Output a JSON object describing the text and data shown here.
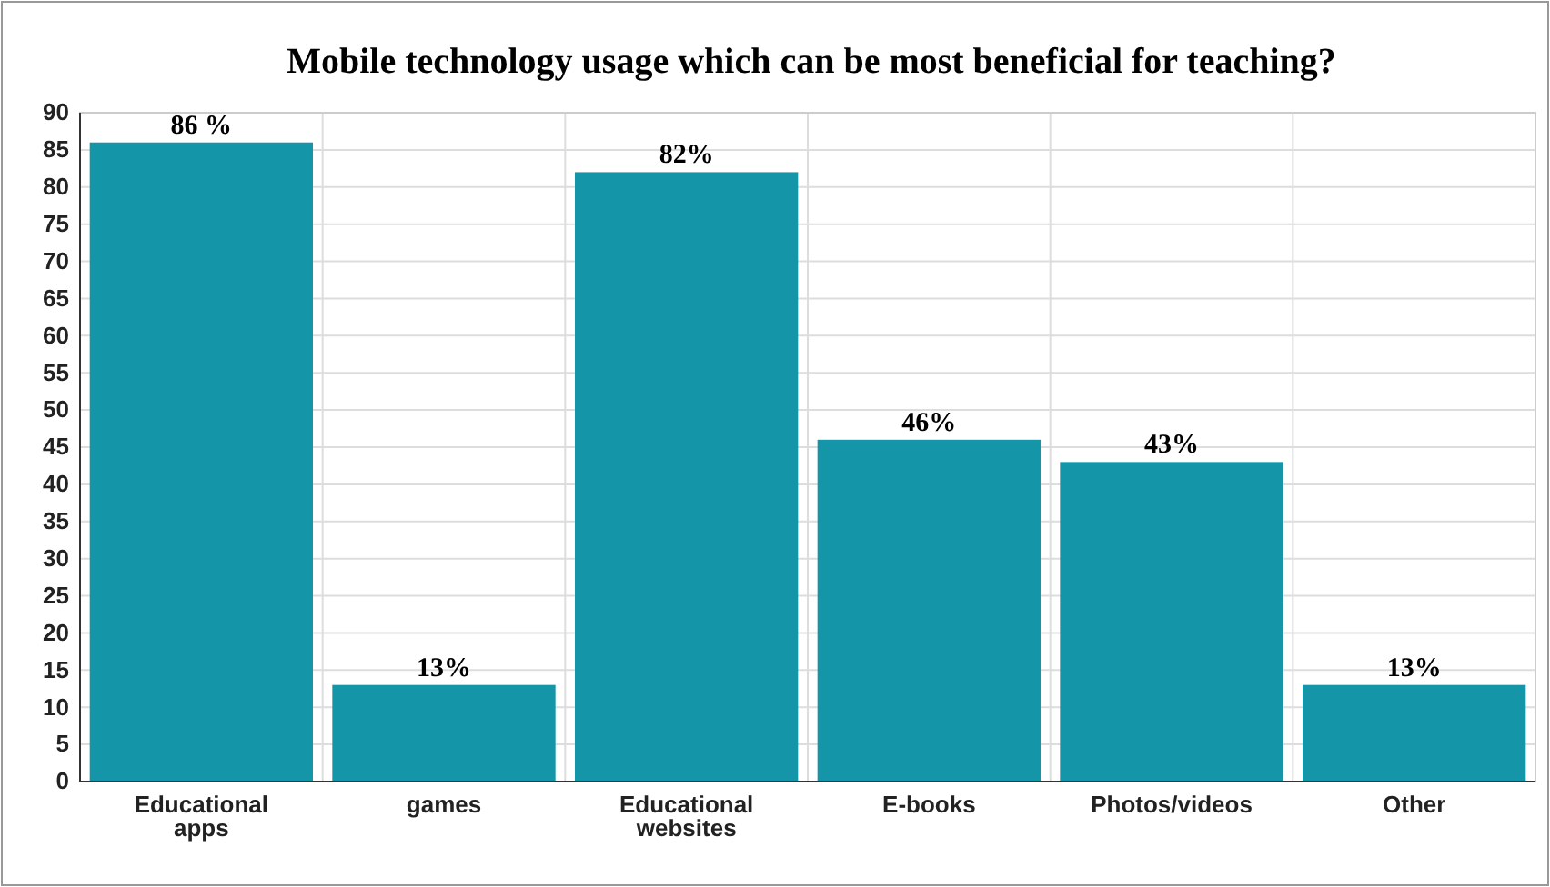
{
  "chart_data": {
    "type": "bar",
    "title": "Mobile technology usage which can be most beneficial for teaching?",
    "categories": [
      "Educational apps",
      "games",
      "Educational websites",
      "E-books",
      "Photos/videos",
      "Other"
    ],
    "values": [
      86,
      13,
      82,
      46,
      43,
      13
    ],
    "value_labels": [
      "86 %",
      "13%",
      "82%",
      "46%",
      "43%",
      "13%"
    ],
    "color": "#1496a8",
    "ylim": [
      0,
      90
    ],
    "yticks": [
      0,
      5,
      10,
      15,
      20,
      25,
      30,
      35,
      40,
      45,
      50,
      55,
      60,
      65,
      70,
      75,
      80,
      85,
      90
    ],
    "grid": true
  }
}
